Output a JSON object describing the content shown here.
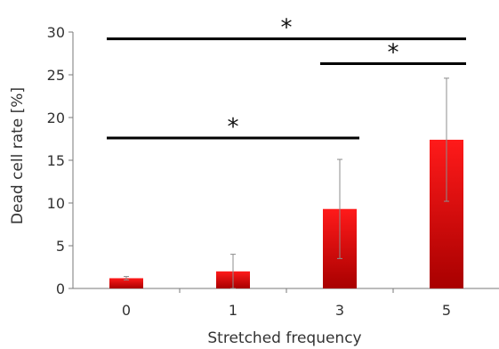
{
  "chart_data": {
    "type": "bar",
    "title": "",
    "xlabel": "Stretched frequency",
    "ylabel": "Dead cell rate [%]",
    "categories": [
      "0",
      "1",
      "3",
      "5"
    ],
    "values": [
      1.2,
      2.0,
      9.3,
      17.4
    ],
    "error": [
      0.2,
      2.0,
      5.8,
      7.2
    ],
    "ylim": [
      0,
      30
    ],
    "yticks": [
      0,
      5,
      10,
      15,
      20,
      25,
      30
    ],
    "grid": false,
    "legend": "none",
    "bar_color_top": "#ff1a1a",
    "bar_color_bottom": "#a80000",
    "significance": [
      {
        "from": "0",
        "to": "5",
        "label": "*",
        "y": 29.2
      },
      {
        "from": "3",
        "to": "5",
        "label": "*",
        "y": 26.3
      },
      {
        "from": "0",
        "to": "3",
        "label": "*",
        "y": 17.6
      }
    ]
  }
}
